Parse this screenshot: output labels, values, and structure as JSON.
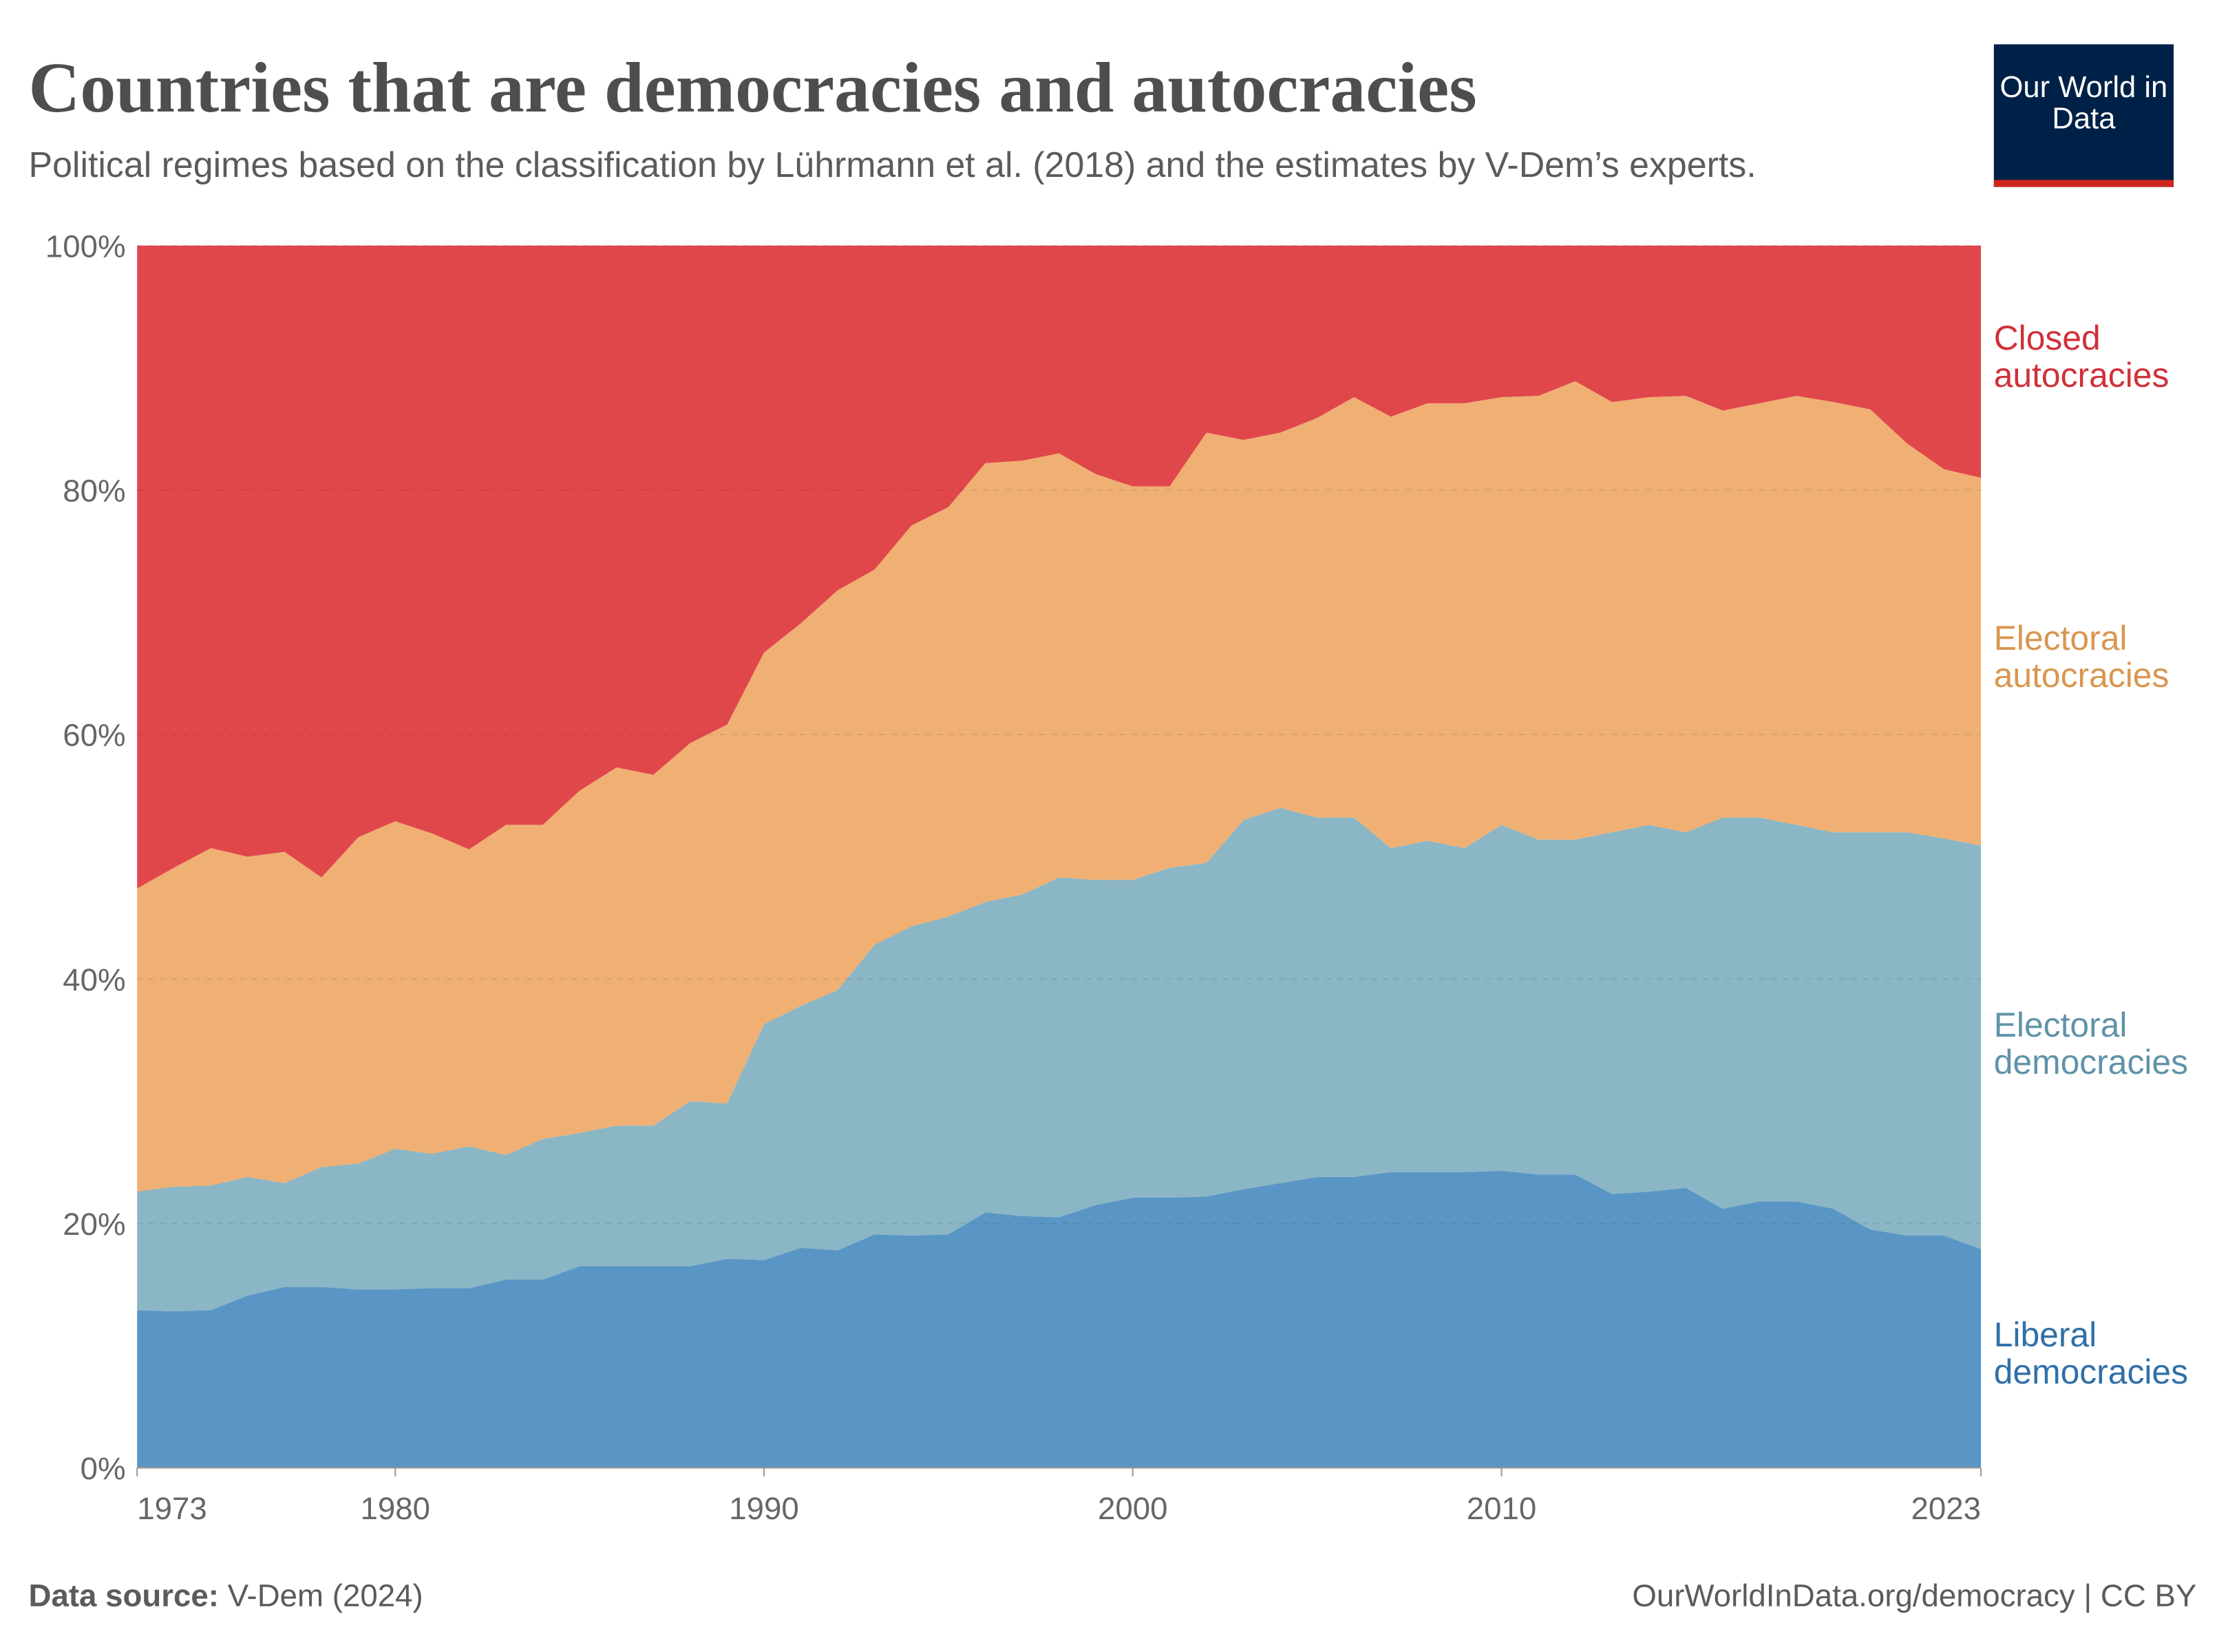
{
  "chart_data": {
    "type": "stacked-area",
    "title": "Countries that are democracies and autocracies",
    "subtitle": "Political regimes based on the classification by Lührmann et al. (2018) and the estimates by V-Dem’s experts.",
    "x": [
      1973,
      1974,
      1975,
      1976,
      1977,
      1978,
      1979,
      1980,
      1981,
      1982,
      1983,
      1984,
      1985,
      1986,
      1987,
      1988,
      1989,
      1990,
      1991,
      1992,
      1993,
      1994,
      1995,
      1996,
      1997,
      1998,
      1999,
      2000,
      2001,
      2002,
      2003,
      2004,
      2005,
      2006,
      2007,
      2008,
      2009,
      2010,
      2011,
      2012,
      2013,
      2014,
      2015,
      2016,
      2017,
      2018,
      2019,
      2020,
      2021,
      2022,
      2023
    ],
    "series": [
      {
        "name": "Liberal democracies",
        "color": "#5a96c5",
        "label_color": "#2f6fa8",
        "values": [
          12.9,
          12.8,
          12.9,
          14.1,
          14.8,
          14.8,
          14.6,
          14.6,
          14.7,
          14.7,
          15.4,
          15.4,
          16.5,
          16.5,
          16.5,
          16.5,
          17.1,
          17.0,
          18.0,
          17.8,
          19.1,
          19.0,
          19.1,
          20.9,
          20.6,
          20.5,
          21.5,
          22.1,
          22.1,
          22.2,
          22.8,
          23.3,
          23.8,
          23.8,
          24.2,
          24.2,
          24.2,
          24.3,
          24.0,
          24.0,
          22.4,
          22.6,
          22.9,
          21.2,
          21.8,
          21.8,
          21.2,
          19.5,
          19.0,
          19.0,
          17.9
        ]
      },
      {
        "name": "Electoral democracies",
        "color": "#8bb6c5",
        "label_color": "#5f93a8",
        "values": [
          9.7,
          10.2,
          10.2,
          9.7,
          8.5,
          9.8,
          10.3,
          11.5,
          11.0,
          11.6,
          10.2,
          11.5,
          10.9,
          11.5,
          11.5,
          13.5,
          12.7,
          19.3,
          19.8,
          21.3,
          23.7,
          25.3,
          26.0,
          25.4,
          26.3,
          27.8,
          26.6,
          26.0,
          27.0,
          27.3,
          30.2,
          30.7,
          29.4,
          29.4,
          26.5,
          27.1,
          26.5,
          28.3,
          27.4,
          27.4,
          29.6,
          30.0,
          29.1,
          32.0,
          31.4,
          30.8,
          30.8,
          32.5,
          33.0,
          32.5,
          33.0
        ]
      },
      {
        "name": "Electoral autocracies",
        "color": "#f0b074",
        "label_color": "#d9964f",
        "values": [
          24.8,
          26.1,
          27.6,
          26.2,
          27.1,
          23.7,
          26.7,
          26.8,
          26.2,
          24.3,
          27.0,
          25.7,
          28.0,
          29.3,
          28.7,
          29.3,
          31.0,
          30.4,
          31.3,
          32.7,
          30.7,
          32.8,
          33.5,
          35.9,
          35.5,
          34.7,
          33.2,
          32.2,
          31.2,
          35.2,
          31.1,
          30.7,
          32.7,
          34.4,
          35.3,
          35.8,
          36.4,
          35.0,
          36.3,
          37.5,
          35.2,
          35.0,
          35.7,
          33.3,
          33.9,
          35.1,
          35.2,
          34.6,
          31.8,
          30.2,
          30.1
        ]
      },
      {
        "name": "Closed autocracies",
        "color": "#e0474b",
        "label_color": "#d1303a",
        "values": [
          52.6,
          50.9,
          49.3,
          50.0,
          49.6,
          51.7,
          48.4,
          47.1,
          48.1,
          49.4,
          47.4,
          47.4,
          44.6,
          42.7,
          43.3,
          40.7,
          39.2,
          33.3,
          30.9,
          28.2,
          26.5,
          22.9,
          21.4,
          17.8,
          17.6,
          17.0,
          18.7,
          19.7,
          19.7,
          15.3,
          15.9,
          15.3,
          14.1,
          12.4,
          14.0,
          12.9,
          12.9,
          12.4,
          12.3,
          11.1,
          12.8,
          12.4,
          12.3,
          13.5,
          12.9,
          12.3,
          12.8,
          13.4,
          16.2,
          18.3,
          19.0
        ]
      }
    ],
    "xlim": [
      1973,
      2023
    ],
    "xticks": [
      1973,
      1980,
      1990,
      2000,
      2010,
      2023
    ],
    "ylim": [
      0,
      100
    ],
    "yticks": [
      {
        "value": 0,
        "label": "0%"
      },
      {
        "value": 20,
        "label": "20%"
      },
      {
        "value": 40,
        "label": "40%"
      },
      {
        "value": 60,
        "label": "60%"
      },
      {
        "value": 80,
        "label": "80%"
      },
      {
        "value": 100,
        "label": "100%"
      }
    ],
    "grid": true
  },
  "logo": "Our World in Data",
  "footer": {
    "source_label": "Data source:",
    "source": "V-Dem (2024)",
    "license": "OurWorldInData.org/democracy | CC BY"
  }
}
